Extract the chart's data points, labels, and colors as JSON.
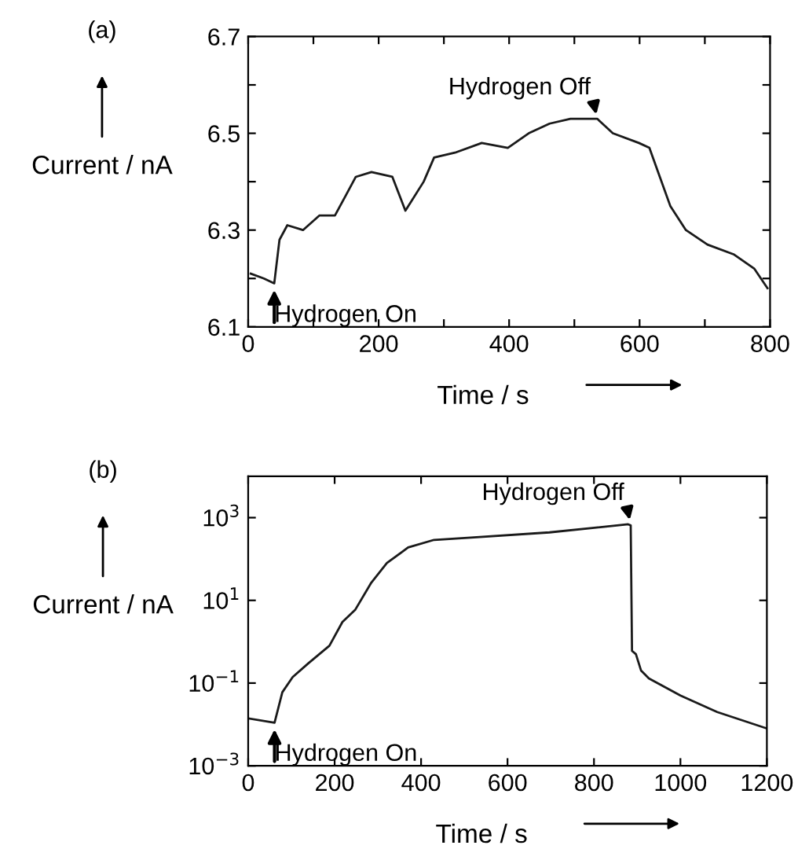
{
  "chart_data": [
    {
      "type": "line",
      "title": "(a)",
      "xlabel": "Time / s",
      "ylabel": "Current / nA",
      "grid": false,
      "marker": "none",
      "line_style": "solid",
      "x": [
        4,
        24,
        40,
        48,
        60,
        84,
        109,
        133,
        149,
        165,
        189,
        221,
        241,
        269,
        285,
        317,
        358,
        398,
        430,
        462,
        494,
        535,
        559,
        599,
        615,
        631,
        647,
        671,
        704,
        744,
        776,
        796
      ],
      "series": [
        {
          "color": "#1a1a1a",
          "values": [
            6.21,
            6.2,
            6.19,
            6.28,
            6.31,
            6.3,
            6.33,
            6.33,
            6.37,
            6.41,
            6.42,
            6.41,
            6.34,
            6.4,
            6.45,
            6.46,
            6.48,
            6.47,
            6.5,
            6.52,
            6.53,
            6.53,
            6.5,
            6.48,
            6.47,
            6.41,
            6.35,
            6.3,
            6.27,
            6.25,
            6.22,
            6.18
          ]
        }
      ],
      "xlim": [
        0,
        800
      ],
      "xticks": [
        0,
        {
          "value": 100,
          "label": null
        },
        200,
        {
          "value": 300,
          "label": null
        },
        400,
        {
          "value": 500,
          "label": null
        },
        600,
        {
          "value": 700,
          "label": null
        },
        800
      ],
      "ylim": [
        6.1,
        6.7
      ],
      "yticks": [
        6.1,
        {
          "value": 6.2,
          "label": null
        },
        6.3,
        {
          "value": 6.4,
          "label": null
        },
        6.5,
        {
          "value": 6.6,
          "label": null
        },
        6.7
      ],
      "annotations": [
        {
          "text": "Hydrogen On",
          "x": 40,
          "y": 6.19
        },
        {
          "text": "Hydrogen Off",
          "x": 535,
          "y": 6.53
        }
      ]
    },
    {
      "type": "line",
      "title": "(b)",
      "xlabel": "Time / s",
      "ylabel": "Current / nA",
      "grid": false,
      "marker": "none",
      "line_style": "solid",
      "log": "y",
      "x": [
        0,
        61,
        79,
        103,
        139,
        188,
        218,
        248,
        285,
        321,
        370,
        430,
        515,
        697,
        879,
        885,
        888,
        897,
        909,
        927,
        1000,
        1085,
        1200
      ],
      "series": [
        {
          "color": "#1a1a1a",
          "values": [
            0.014,
            0.011,
            0.06,
            0.14,
            0.3,
            0.8,
            3,
            6,
            27,
            80,
            190,
            290,
            330,
            440,
            690,
            650,
            0.6,
            0.5,
            0.2,
            0.13,
            0.05,
            0.02,
            0.008
          ]
        }
      ],
      "xlim": [
        0,
        1200
      ],
      "xticks": [
        0,
        200,
        400,
        600,
        800,
        1000,
        1200
      ],
      "ylim": [
        0.001,
        10000
      ],
      "yticks": [
        {
          "value": 0.001,
          "label": "10$^{−3}$"
        },
        {
          "value": 0.1,
          "label": "10$^{−1}$"
        },
        {
          "value": 10,
          "label": "10$^{1}$"
        },
        {
          "value": 1000,
          "label": "10$^{3}$"
        }
      ],
      "annotations": [
        {
          "text": "Hydrogen On",
          "x": 61,
          "y": 0.011
        },
        {
          "text": "Hydrogen Off",
          "x": 885,
          "y": 690
        }
      ]
    }
  ]
}
